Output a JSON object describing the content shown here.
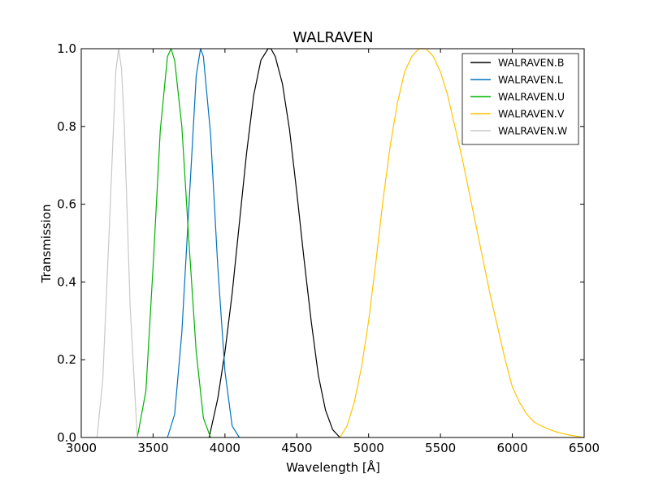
{
  "chart_data": {
    "type": "line",
    "title": "WALRAVEN",
    "xlabel": "Wavelength [Å]",
    "ylabel": "Transmission",
    "xlim": [
      3000,
      6500
    ],
    "ylim": [
      0,
      1.0
    ],
    "xticks": [
      3000,
      3500,
      4000,
      4500,
      5000,
      5500,
      6000,
      6500
    ],
    "yticks": [
      0.0,
      0.2,
      0.4,
      0.6,
      0.8,
      1.0
    ],
    "xtick_labels": [
      "3000",
      "3500",
      "4000",
      "4500",
      "5000",
      "5500",
      "6000",
      "6500"
    ],
    "ytick_labels": [
      "0.0",
      "0.2",
      "0.4",
      "0.6",
      "0.8",
      "1.0"
    ],
    "grid": false,
    "legend_position": "top-right",
    "series": [
      {
        "name": "WALRAVEN.B",
        "color": "#000000",
        "x": [
          3890,
          3950,
          4000,
          4050,
          4100,
          4150,
          4200,
          4250,
          4300,
          4320,
          4350,
          4400,
          4450,
          4500,
          4550,
          4600,
          4650,
          4700,
          4750,
          4800
        ],
        "y": [
          0.0,
          0.1,
          0.22,
          0.37,
          0.55,
          0.73,
          0.88,
          0.97,
          1.0,
          1.0,
          0.98,
          0.91,
          0.79,
          0.63,
          0.46,
          0.3,
          0.16,
          0.07,
          0.02,
          0.0
        ]
      },
      {
        "name": "WALRAVEN.L",
        "color": "#0072bd",
        "x": [
          3600,
          3650,
          3700,
          3750,
          3800,
          3830,
          3850,
          3900,
          3950,
          4000,
          4050,
          4100
        ],
        "y": [
          0.0,
          0.06,
          0.27,
          0.6,
          0.93,
          1.0,
          0.98,
          0.78,
          0.44,
          0.17,
          0.03,
          0.0
        ]
      },
      {
        "name": "WALRAVEN.U",
        "color": "#00b200",
        "x": [
          3390,
          3450,
          3500,
          3550,
          3600,
          3625,
          3650,
          3700,
          3750,
          3800,
          3850,
          3900
        ],
        "y": [
          0.0,
          0.12,
          0.44,
          0.79,
          0.98,
          1.0,
          0.97,
          0.8,
          0.5,
          0.22,
          0.05,
          0.0
        ]
      },
      {
        "name": "WALRAVEN.V",
        "color": "#ffc400",
        "x": [
          4800,
          4850,
          4900,
          4950,
          5000,
          5050,
          5100,
          5150,
          5200,
          5250,
          5300,
          5350,
          5400,
          5450,
          5500,
          5550,
          5600,
          5650,
          5700,
          5750,
          5800,
          5850,
          5900,
          5950,
          6000,
          6050,
          6100,
          6150,
          6200,
          6250,
          6300,
          6350,
          6400,
          6450,
          6500
        ],
        "y": [
          0.0,
          0.03,
          0.09,
          0.18,
          0.3,
          0.45,
          0.61,
          0.75,
          0.86,
          0.94,
          0.98,
          1.0,
          1.0,
          0.98,
          0.94,
          0.88,
          0.8,
          0.72,
          0.63,
          0.54,
          0.45,
          0.36,
          0.28,
          0.2,
          0.13,
          0.09,
          0.06,
          0.04,
          0.03,
          0.022,
          0.015,
          0.01,
          0.006,
          0.003,
          0.0
        ]
      },
      {
        "name": "WALRAVEN.W",
        "color": "#c8c8c8",
        "x": [
          3110,
          3150,
          3200,
          3240,
          3260,
          3280,
          3300,
          3340,
          3390
        ],
        "y": [
          0.0,
          0.15,
          0.58,
          0.94,
          1.0,
          0.95,
          0.8,
          0.34,
          0.0
        ]
      }
    ]
  }
}
